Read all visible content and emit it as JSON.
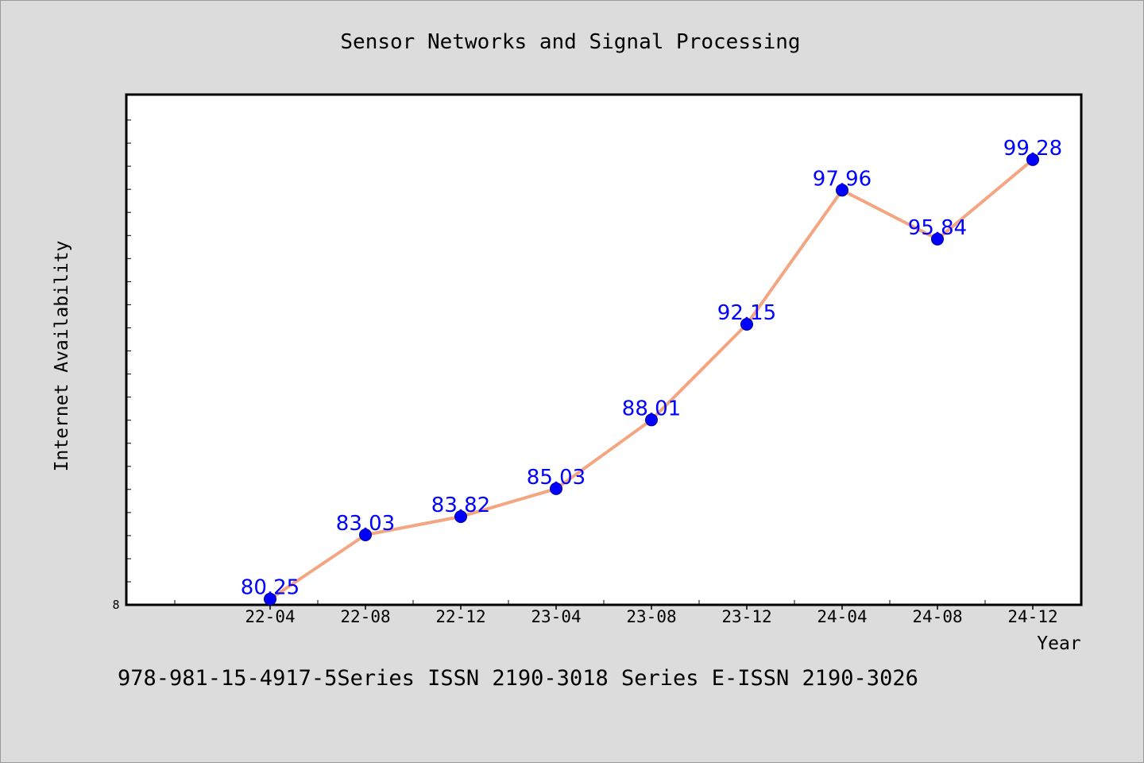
{
  "chart_data": {
    "type": "line",
    "title": "Sensor Networks and Signal Processing",
    "xlabel": "Year",
    "ylabel": "Internet Availability",
    "categories": [
      "22-04",
      "22-08",
      "22-12",
      "23-04",
      "23-08",
      "23-12",
      "24-04",
      "24-08",
      "24-12"
    ],
    "series": [
      {
        "values": [
          80.25,
          83.03,
          83.82,
          85.03,
          88.01,
          92.15,
          97.96,
          95.84,
          99.28
        ],
        "line_color": "#f4a582",
        "marker_color": "#0000ff"
      }
    ],
    "ylim": [
      80,
      102.1
    ],
    "y_tick_label": "8",
    "grid": false,
    "footnote": "978-981-15-4917-5Series ISSN 2190-3018 Series E-ISSN 2190-3026",
    "colors": {
      "background": "#dcdcdc",
      "plot_background": "#ffffff",
      "label_color": "#0000ff"
    }
  }
}
